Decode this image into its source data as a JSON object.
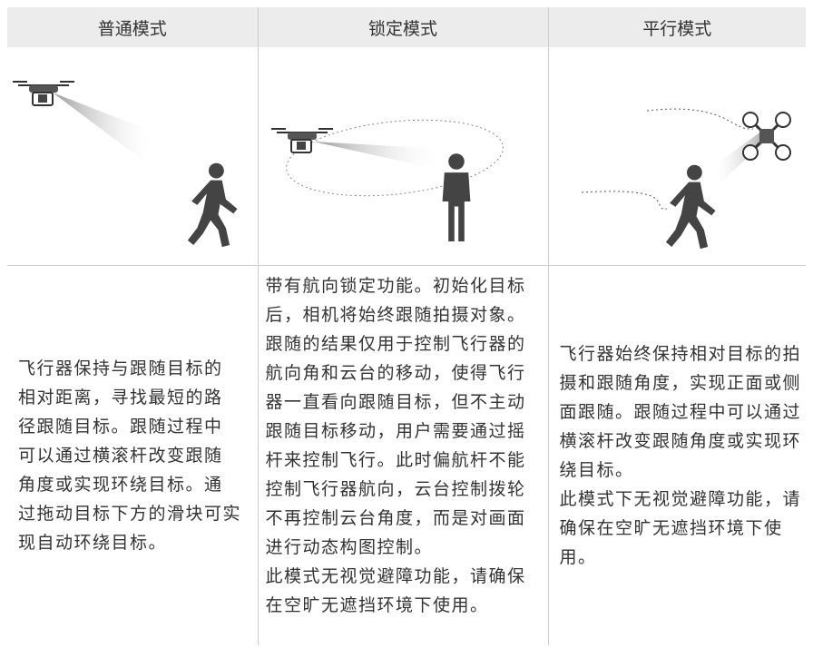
{
  "header": [
    "普通模式",
    "锁定模式",
    "平行模式"
  ],
  "descriptions": [
    [
      [
        "飞行器保持与跟随目标的",
        "相对距离，寻找最短的路",
        "径跟随目标。跟随过程中",
        "可以通过横滚杆改变跟随",
        "角度或实现环绕目标。通",
        "过拖动目标下方的滑块可实",
        "现自动环绕目标。"
      ]
    ],
    [
      [
        "带有航向锁定功能。初始化目标",
        "后，相机将始终跟随拍摄对象。",
        "跟随的结果仅用于控制飞行器的",
        "航向角和云台的移动，使得飞行",
        "器一直看向跟随目标，但不主动",
        "跟随目标移动，用户需要通过摇",
        "杆来控制飞行。此时偏航杆不能",
        "控制飞行器航向，云台控制拨轮",
        "不再控制云台角度，而是对画面",
        "进行动态构图控制。"
      ],
      [
        "此模式无视觉避障功能，请确保",
        "在空旷无遮挡环境下使用。"
      ]
    ],
    [
      [
        "飞行器始终保持相对目标的拍",
        "摄和跟随角度，实现正面或侧",
        "面跟随。跟随过程中可以通过",
        "横滚杆改变跟随角度或实现环",
        "绕目标。"
      ],
      [
        "此模式下无视觉避障功能，请",
        "确保在空旷无遮挡环境下使",
        "用。"
      ]
    ]
  ]
}
